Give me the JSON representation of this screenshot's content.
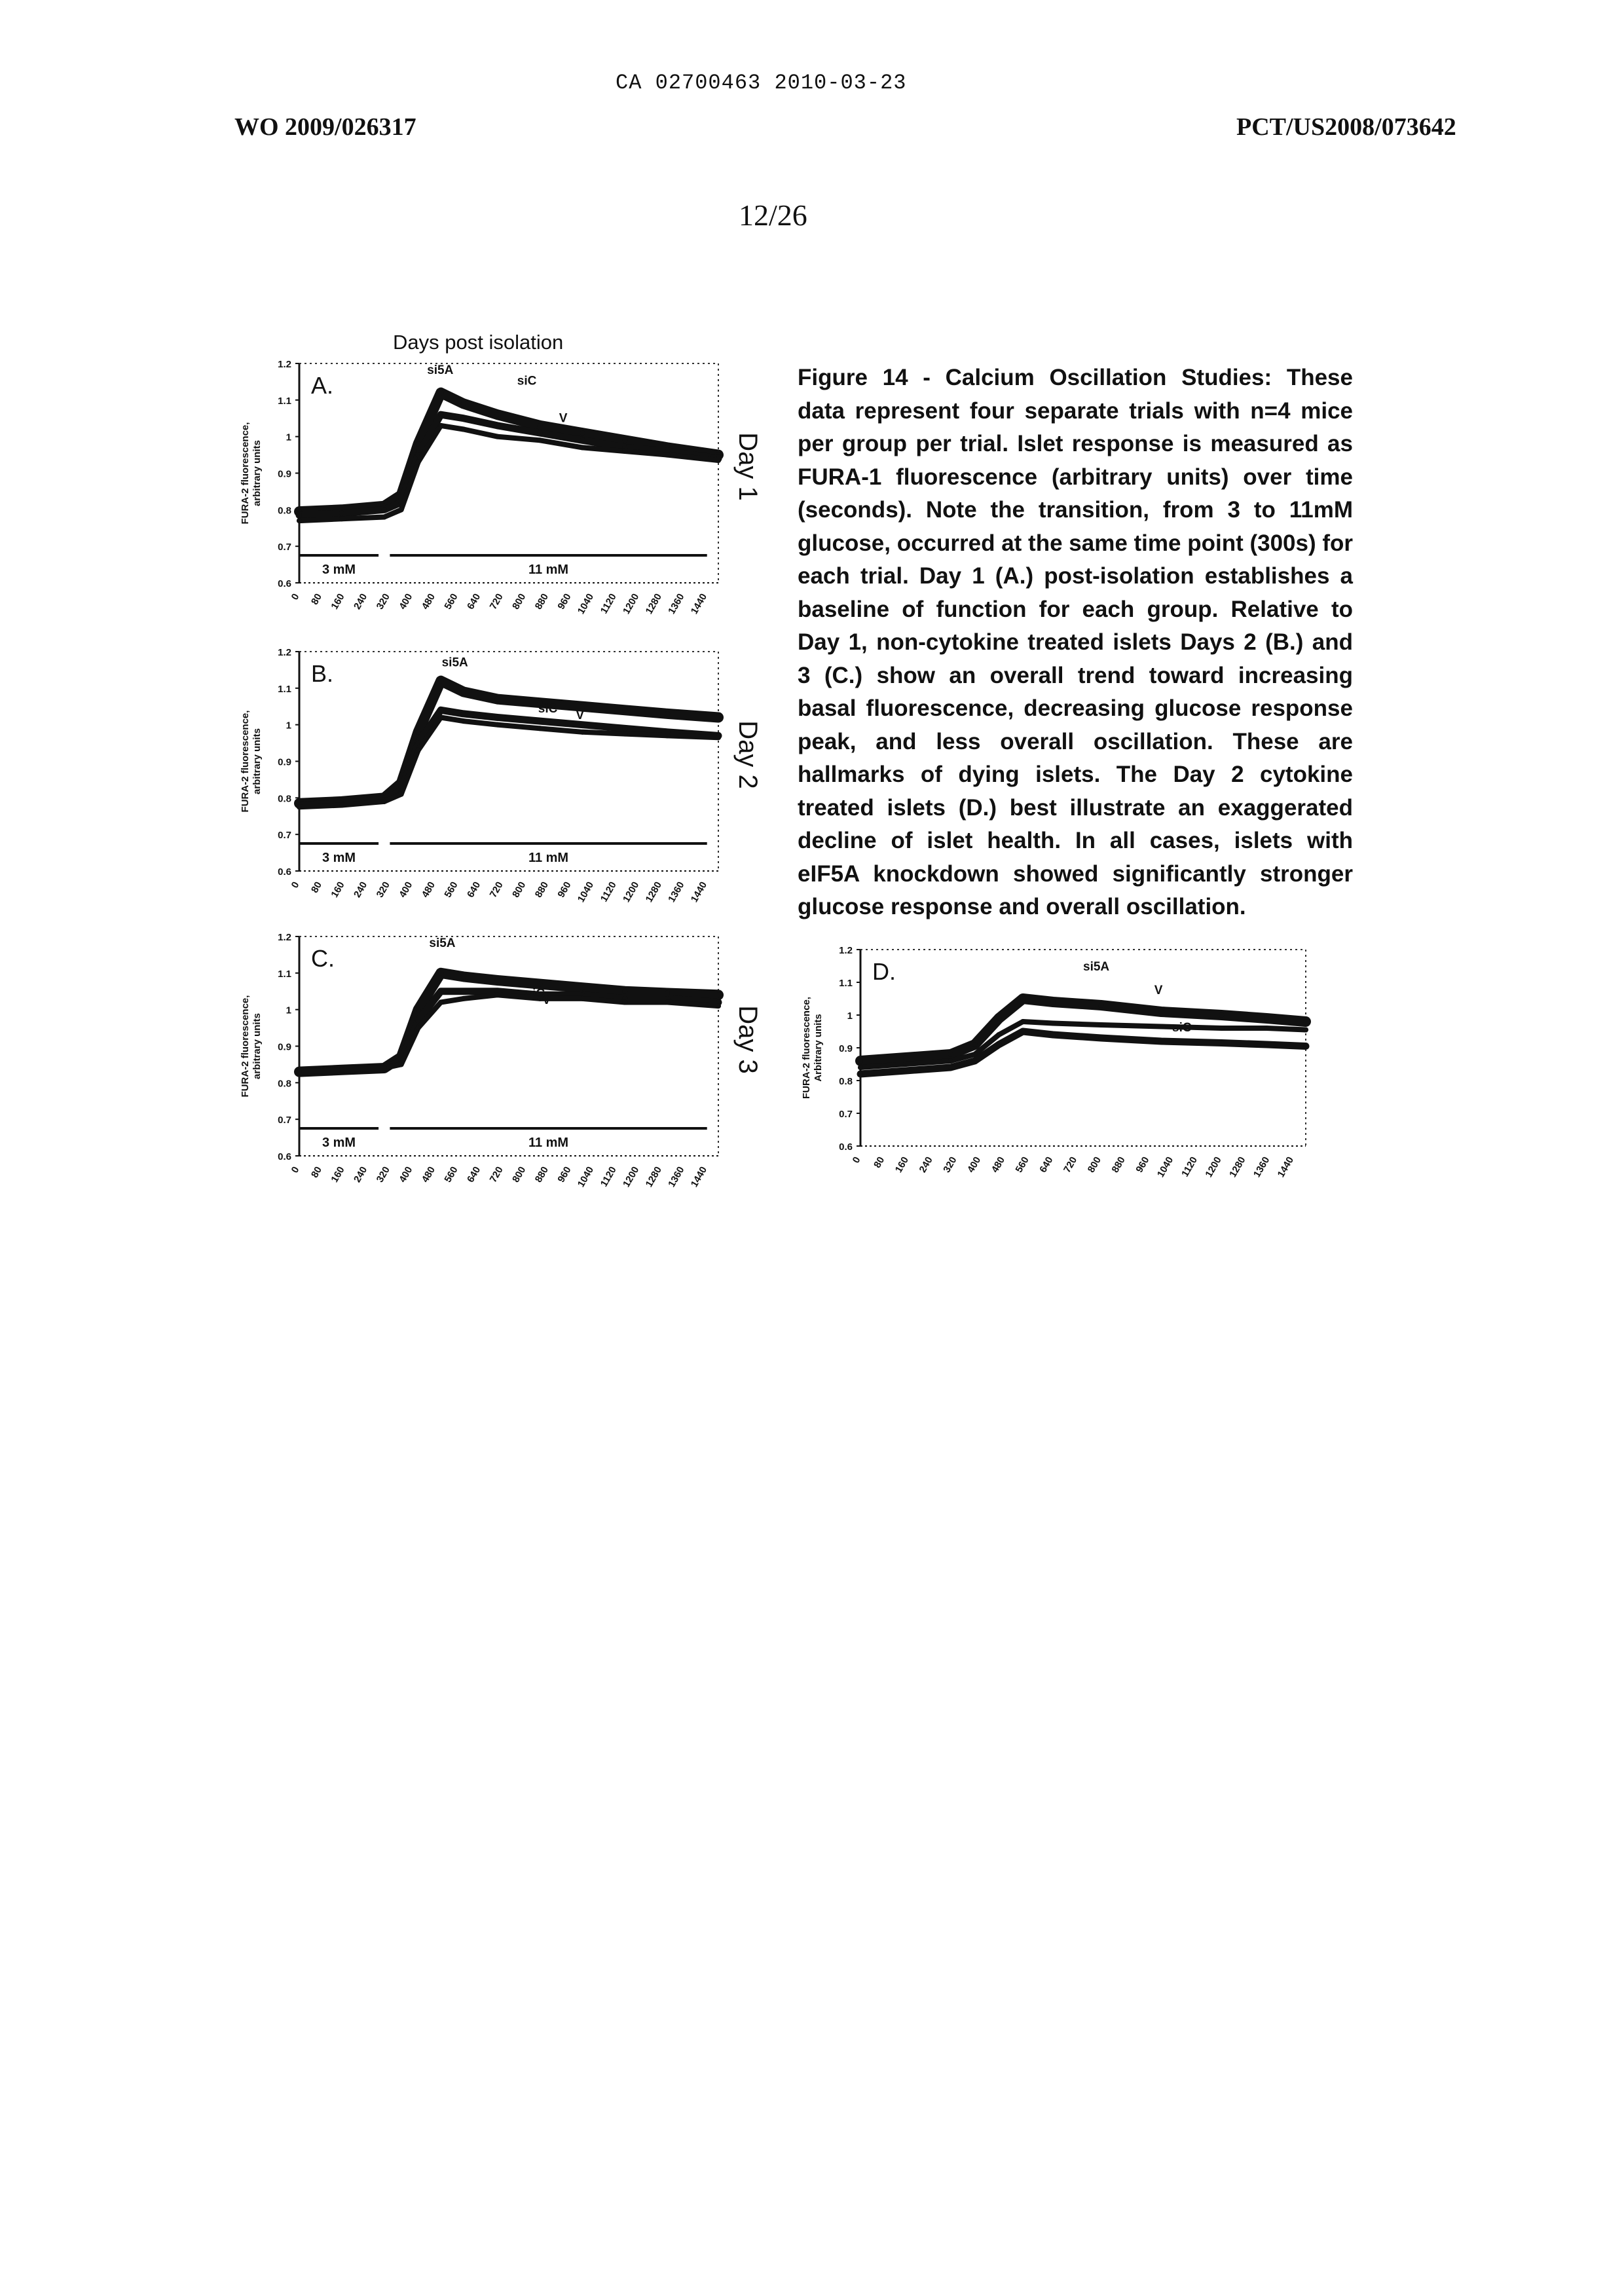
{
  "header": {
    "ca_number": "CA 02700463 2010-03-23",
    "wo_number": "WO 2009/026317",
    "pct_number": "PCT/US2008/073642",
    "page": "12/26"
  },
  "figure_title": "Days post isolation",
  "caption": "Figure 14 - Calcium Oscillation Studies: These data represent four separate trials with n=4 mice per group per trial. Islet response is measured as FURA-1 fluorescence (arbitrary units) over time (seconds). Note the transition, from 3 to 11mM glucose, occurred at the same time point (300s) for each trial. Day 1 (A.) post-isolation establishes a baseline of function for each group. Relative to Day 1, non-cytokine treated islets Days 2 (B.) and 3 (C.) show an overall trend toward increasing basal fluorescence, decreasing glucose response peak, and less overall oscillation. These are hallmarks of dying islets. The Day 2 cytokine treated islets (D.) best illustrate an exaggerated decline of islet health. In all cases, islets with eIF5A knockdown showed significantly stronger glucose response and overall oscillation.",
  "chart_data": [
    {
      "type": "line",
      "panel": "A.",
      "day_label": "Day 1",
      "ylabel": "FURA-2 fluorescence, arbitrary units",
      "ylim": [
        0.6,
        1.2
      ],
      "yticks": [
        "1.2",
        "1.1",
        "1",
        "0.9",
        "0.8",
        "0.7",
        "0.6"
      ],
      "xticks": [
        "0",
        "80",
        "160",
        "240",
        "320",
        "400",
        "480",
        "560",
        "640",
        "720",
        "800",
        "880",
        "960",
        "1040",
        "1120",
        "1200",
        "1280",
        "1360",
        "1440"
      ],
      "xlim": [
        0,
        1480
      ],
      "conditions": [
        "3 mM",
        "11 mM"
      ],
      "x": [
        0,
        150,
        300,
        360,
        420,
        500,
        580,
        700,
        850,
        1000,
        1150,
        1300,
        1480
      ],
      "series": [
        {
          "name": "si5A",
          "values": [
            0.795,
            0.8,
            0.81,
            0.84,
            0.98,
            1.12,
            1.09,
            1.06,
            1.03,
            1.01,
            0.99,
            0.97,
            0.95
          ]
        },
        {
          "name": "siC",
          "values": [
            0.785,
            0.79,
            0.8,
            0.82,
            0.95,
            1.06,
            1.05,
            1.03,
            1.01,
            0.99,
            0.97,
            0.96,
            0.94
          ]
        },
        {
          "name": "V",
          "values": [
            0.77,
            0.775,
            0.78,
            0.8,
            0.93,
            1.03,
            1.02,
            1.0,
            0.99,
            0.97,
            0.96,
            0.95,
            0.935
          ]
        }
      ]
    },
    {
      "type": "line",
      "panel": "B.",
      "day_label": "Day 2",
      "ylabel": "FURA-2 fluorescence, arbitrary units",
      "ylim": [
        0.6,
        1.2
      ],
      "yticks": [
        "1.2",
        "1.1",
        "1",
        "0.9",
        "0.8",
        "0.7",
        "0.6"
      ],
      "xticks": [
        "0",
        "80",
        "160",
        "240",
        "320",
        "400",
        "480",
        "560",
        "640",
        "720",
        "800",
        "880",
        "960",
        "1040",
        "1120",
        "1200",
        "1280",
        "1360",
        "1440"
      ],
      "xlim": [
        0,
        1480
      ],
      "conditions": [
        "3 mM",
        "11 mM"
      ],
      "x": [
        0,
        150,
        300,
        360,
        420,
        500,
        580,
        700,
        850,
        1000,
        1150,
        1300,
        1480
      ],
      "series": [
        {
          "name": "si5A",
          "values": [
            0.785,
            0.79,
            0.8,
            0.84,
            0.98,
            1.12,
            1.09,
            1.07,
            1.06,
            1.05,
            1.04,
            1.03,
            1.02
          ]
        },
        {
          "name": "siC",
          "values": [
            0.78,
            0.785,
            0.795,
            0.82,
            0.95,
            1.04,
            1.03,
            1.02,
            1.01,
            1.0,
            0.99,
            0.98,
            0.97
          ]
        },
        {
          "name": "V",
          "values": [
            0.775,
            0.78,
            0.79,
            0.81,
            0.93,
            1.02,
            1.01,
            1.0,
            0.99,
            0.98,
            0.975,
            0.97,
            0.965
          ]
        }
      ]
    },
    {
      "type": "line",
      "panel": "C.",
      "day_label": "Day 3",
      "ylabel": "FURA-2 fluorescence, arbitrary units",
      "ylim": [
        0.6,
        1.2
      ],
      "yticks": [
        "1.2",
        "1.1",
        "1",
        "0.9",
        "0.8",
        "0.7",
        "0.6"
      ],
      "xticks": [
        "0",
        "80",
        "160",
        "240",
        "320",
        "400",
        "480",
        "560",
        "640",
        "720",
        "800",
        "880",
        "960",
        "1040",
        "1120",
        "1200",
        "1280",
        "1360",
        "1440"
      ],
      "xlim": [
        0,
        1480
      ],
      "conditions": [
        "3 mM",
        "11 mM"
      ],
      "x": [
        0,
        150,
        300,
        360,
        420,
        500,
        580,
        700,
        850,
        1000,
        1150,
        1300,
        1480
      ],
      "series": [
        {
          "name": "si5A",
          "values": [
            0.83,
            0.835,
            0.84,
            0.87,
            1.0,
            1.1,
            1.09,
            1.08,
            1.07,
            1.06,
            1.05,
            1.045,
            1.04
          ]
        },
        {
          "name": "siC",
          "values": [
            0.83,
            0.835,
            0.84,
            0.86,
            0.97,
            1.05,
            1.05,
            1.05,
            1.04,
            1.04,
            1.03,
            1.03,
            1.02
          ]
        },
        {
          "name": "V",
          "values": [
            0.83,
            0.835,
            0.84,
            0.85,
            0.95,
            1.02,
            1.03,
            1.04,
            1.03,
            1.03,
            1.02,
            1.02,
            1.01
          ]
        }
      ]
    },
    {
      "type": "line",
      "panel": "D.",
      "ylabel": "FURA-2 fluorescence, Arbitrary units",
      "ylim": [
        0.6,
        1.2
      ],
      "yticks": [
        "1.2",
        "1.1",
        "1",
        "0.9",
        "0.8",
        "0.7",
        "0.6"
      ],
      "xticks": [
        "0",
        "80",
        "160",
        "240",
        "320",
        "400",
        "480",
        "560",
        "640",
        "720",
        "800",
        "880",
        "960",
        "1040",
        "1120",
        "1200",
        "1280",
        "1360",
        "1440"
      ],
      "xlim": [
        0,
        1480
      ],
      "x": [
        0,
        150,
        300,
        380,
        460,
        540,
        640,
        800,
        1000,
        1200,
        1350,
        1480
      ],
      "series": [
        {
          "name": "si5A",
          "values": [
            0.86,
            0.87,
            0.88,
            0.91,
            0.99,
            1.05,
            1.04,
            1.03,
            1.01,
            1.0,
            0.99,
            0.98
          ]
        },
        {
          "name": "V",
          "values": [
            0.84,
            0.85,
            0.86,
            0.88,
            0.94,
            0.98,
            0.975,
            0.97,
            0.965,
            0.96,
            0.96,
            0.955
          ]
        },
        {
          "name": "siC",
          "values": [
            0.82,
            0.83,
            0.84,
            0.86,
            0.91,
            0.95,
            0.94,
            0.93,
            0.92,
            0.915,
            0.91,
            0.905
          ]
        }
      ]
    }
  ]
}
